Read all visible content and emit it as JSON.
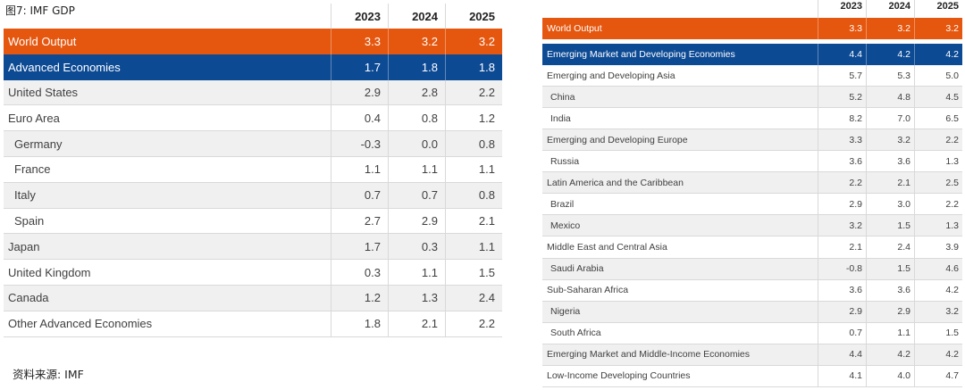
{
  "title": "图7:  IMF GDP",
  "source": "资料来源:  IMF",
  "left_table": {
    "years": [
      "2023",
      "2024",
      "2025"
    ],
    "rows": [
      {
        "label": "World Output",
        "values": [
          "3.3",
          "3.2",
          "3.2"
        ],
        "style": "orange",
        "indent": false
      },
      {
        "label": "Advanced Economies",
        "values": [
          "1.7",
          "1.8",
          "1.8"
        ],
        "style": "blue",
        "indent": false
      },
      {
        "label": "United States",
        "values": [
          "2.9",
          "2.8",
          "2.2"
        ],
        "style": "grey",
        "indent": false
      },
      {
        "label": "Euro Area",
        "values": [
          "0.4",
          "0.8",
          "1.2"
        ],
        "style": "white",
        "indent": false
      },
      {
        "label": "Germany",
        "values": [
          "-0.3",
          "0.0",
          "0.8"
        ],
        "style": "grey",
        "indent": true
      },
      {
        "label": "France",
        "values": [
          "1.1",
          "1.1",
          "1.1"
        ],
        "style": "white",
        "indent": true
      },
      {
        "label": "Italy",
        "values": [
          "0.7",
          "0.7",
          "0.8"
        ],
        "style": "grey",
        "indent": true
      },
      {
        "label": "Spain",
        "values": [
          "2.7",
          "2.9",
          "2.1"
        ],
        "style": "white",
        "indent": true
      },
      {
        "label": "Japan",
        "values": [
          "1.7",
          "0.3",
          "1.1"
        ],
        "style": "grey",
        "indent": false
      },
      {
        "label": "United Kingdom",
        "values": [
          "0.3",
          "1.1",
          "1.5"
        ],
        "style": "white",
        "indent": false
      },
      {
        "label": "Canada",
        "values": [
          "1.2",
          "1.3",
          "2.4"
        ],
        "style": "grey",
        "indent": false
      },
      {
        "label": "Other Advanced Economies",
        "values": [
          "1.8",
          "2.1",
          "2.2"
        ],
        "style": "white",
        "indent": false
      }
    ]
  },
  "right_table": {
    "years": [
      "2023",
      "2024",
      "2025"
    ],
    "rows": [
      {
        "label": "World Output",
        "values": [
          "3.3",
          "3.2",
          "3.2"
        ],
        "style": "orange",
        "indent": false
      },
      {
        "label": "Emerging Market and Developing Economies",
        "values": [
          "4.4",
          "4.2",
          "4.2"
        ],
        "style": "blue",
        "indent": false
      },
      {
        "label": "Emerging and Developing Asia",
        "values": [
          "5.7",
          "5.3",
          "5.0"
        ],
        "style": "white",
        "indent": false
      },
      {
        "label": "China",
        "values": [
          "5.2",
          "4.8",
          "4.5"
        ],
        "style": "grey",
        "indent": true
      },
      {
        "label": "India",
        "values": [
          "8.2",
          "7.0",
          "6.5"
        ],
        "style": "white",
        "indent": true
      },
      {
        "label": "Emerging and Developing Europe",
        "values": [
          "3.3",
          "3.2",
          "2.2"
        ],
        "style": "grey",
        "indent": false
      },
      {
        "label": "Russia",
        "values": [
          "3.6",
          "3.6",
          "1.3"
        ],
        "style": "white",
        "indent": true
      },
      {
        "label": "Latin America and the Caribbean",
        "values": [
          "2.2",
          "2.1",
          "2.5"
        ],
        "style": "grey",
        "indent": false
      },
      {
        "label": "Brazil",
        "values": [
          "2.9",
          "3.0",
          "2.2"
        ],
        "style": "white",
        "indent": true
      },
      {
        "label": "Mexico",
        "values": [
          "3.2",
          "1.5",
          "1.3"
        ],
        "style": "grey",
        "indent": true
      },
      {
        "label": "Middle East and Central Asia",
        "values": [
          "2.1",
          "2.4",
          "3.9"
        ],
        "style": "white",
        "indent": false
      },
      {
        "label": "Saudi Arabia",
        "values": [
          "-0.8",
          "1.5",
          "4.6"
        ],
        "style": "grey",
        "indent": true
      },
      {
        "label": "Sub-Saharan Africa",
        "values": [
          "3.6",
          "3.6",
          "4.2"
        ],
        "style": "white",
        "indent": false
      },
      {
        "label": "Nigeria",
        "values": [
          "2.9",
          "2.9",
          "3.2"
        ],
        "style": "grey",
        "indent": true
      },
      {
        "label": "South Africa",
        "values": [
          "0.7",
          "1.1",
          "1.5"
        ],
        "style": "white",
        "indent": true
      },
      {
        "label": "Emerging Market and Middle-Income Economies",
        "values": [
          "4.4",
          "4.2",
          "4.2"
        ],
        "style": "grey",
        "indent": false
      },
      {
        "label": "Low-Income Developing Countries",
        "values": [
          "4.1",
          "4.0",
          "4.7"
        ],
        "style": "white",
        "indent": false
      }
    ]
  },
  "colors": {
    "orange": "#e5570f",
    "blue": "#0d4a94",
    "grey": "#f0f0f0"
  }
}
